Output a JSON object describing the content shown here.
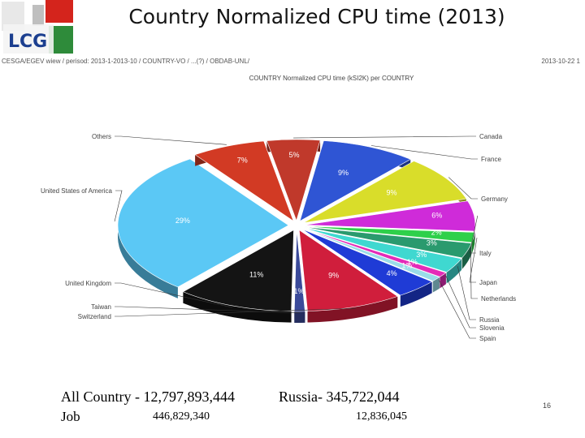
{
  "slide": {
    "title": "Country Normalized CPU time (2013)",
    "page_number": "16"
  },
  "source_path": {
    "left": "CESGA/EGEV wiew / perisod: 2013-1-2013-10 / COUNTRY-VO / ...(?) / OBDAB-UNL/",
    "right": "2013-10-22 1"
  },
  "footer": {
    "all_country_label": "All Country - 12,797,893,444",
    "russia_label": "Russia-  345,722,044",
    "job_label": "Job",
    "all_country_jobs": "446,829,340",
    "russia_jobs": "12,836,045"
  },
  "chart_data": {
    "type": "pie",
    "title": "COUNTRY  Normalized CPU time (kSI2K) per COUNTRY",
    "slices": [
      {
        "name": "Canada",
        "value": 5,
        "label": "5%",
        "color": "#c0392b"
      },
      {
        "name": "France",
        "value": 9,
        "label": "9%",
        "color": "#2f55d4"
      },
      {
        "name": "Germany",
        "value": 9,
        "label": "9%",
        "color": "#d9dd2a"
      },
      {
        "name": "Italy",
        "value": 6,
        "label": "6%",
        "color": "#cf2bd9"
      },
      {
        "name": "Japan",
        "value": 2,
        "label": "2%",
        "color": "#2ed04a"
      },
      {
        "name": "Netherlands",
        "value": 3,
        "label": "3%",
        "color": "#2a9a6e"
      },
      {
        "name": "Russia",
        "value": 3,
        "label": "3%",
        "color": "#3fd8d0"
      },
      {
        "name": "Slovenia",
        "value": 1,
        "label": "1%",
        "color": "#e42bb8"
      },
      {
        "name": "Spain",
        "value": 1,
        "label": "1%",
        "color": "#9adce8"
      },
      {
        "name": "",
        "value": 4,
        "label": "4%",
        "color": "#1f3bd6"
      },
      {
        "name": "Switzerland",
        "value": 9,
        "label": "9%",
        "color": "#d01e3c"
      },
      {
        "name": "Taiwan",
        "value": 1,
        "label": "1%",
        "color": "#3b4a9a"
      },
      {
        "name": "United Kingdom",
        "value": 11,
        "label": "11%",
        "color": "#141414"
      },
      {
        "name": "United States of America",
        "value": 29,
        "label": "29%",
        "color": "#5bc8f5"
      },
      {
        "name": "Others",
        "value": 7,
        "label": "7%",
        "color": "#d23a24"
      }
    ],
    "legend_position": "around"
  }
}
